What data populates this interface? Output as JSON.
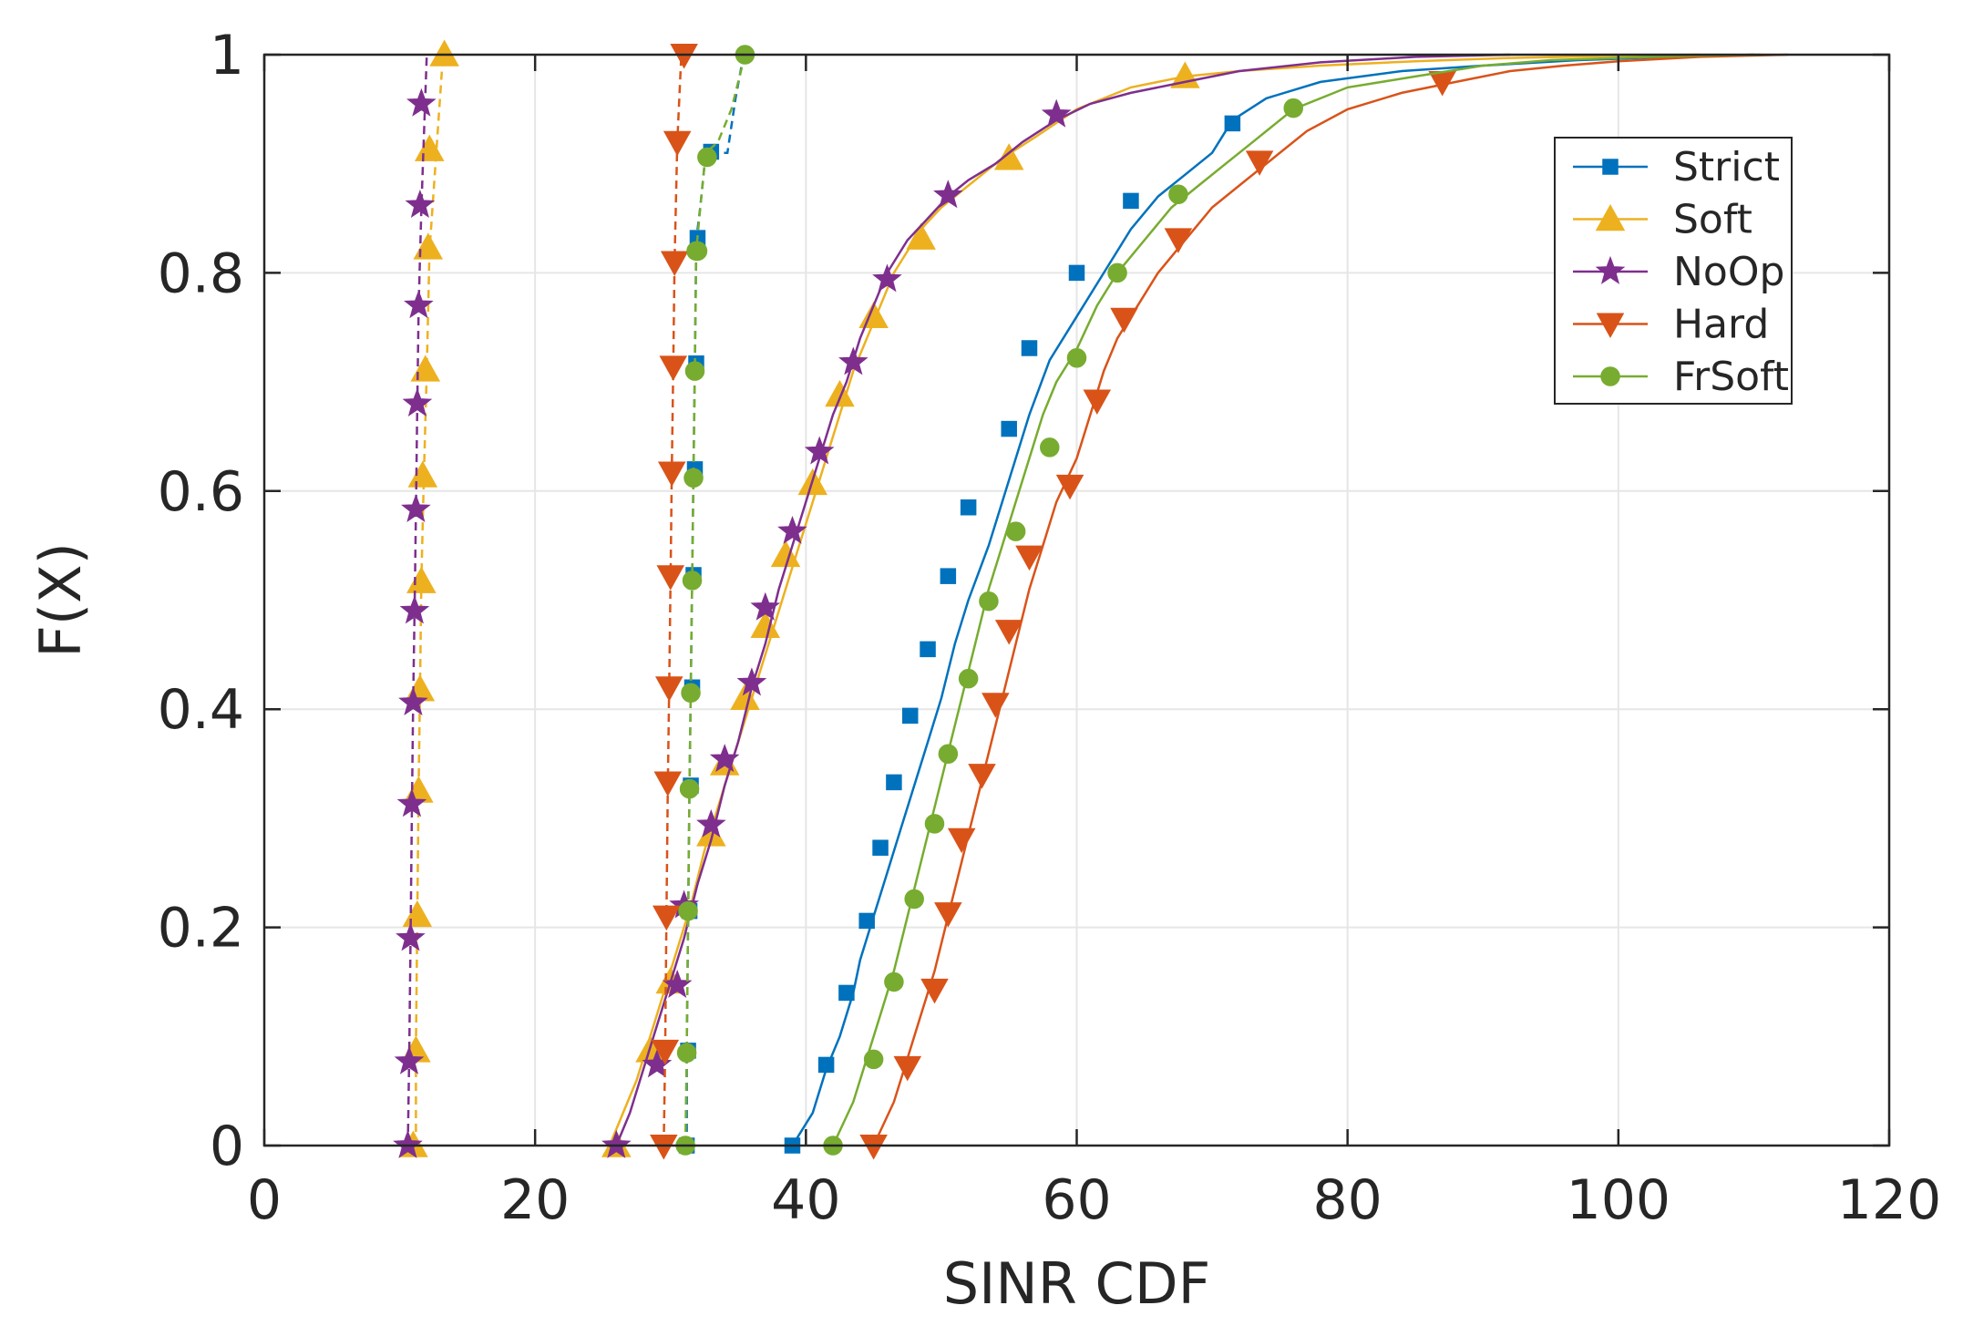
{
  "chart_data": {
    "type": "line",
    "title": "",
    "xlabel": "SINR CDF",
    "ylabel": "F(X)",
    "xlim": [
      0,
      120
    ],
    "ylim": [
      0,
      1
    ],
    "xticks": [
      0,
      20,
      40,
      60,
      80,
      100,
      120
    ],
    "yticks": [
      0,
      0.2,
      0.4,
      0.6,
      0.8,
      1
    ],
    "xtick_labels": [
      "0",
      "20",
      "40",
      "60",
      "80",
      "100",
      "120"
    ],
    "ytick_labels": [
      "0",
      "0.2",
      "0.4",
      "0.6",
      "0.8",
      "1"
    ],
    "grid": true,
    "legend_position": "top-right",
    "series": [
      {
        "name": "Strict",
        "color": "#0072BD",
        "marker": "square",
        "solid": {
          "x": [
            39.0,
            40.5,
            41.5,
            42.5,
            43.5,
            44.0,
            45.0,
            46.0,
            47.0,
            48.0,
            49.0,
            50.0,
            51.0,
            52.0,
            53.5,
            55.0,
            56.5,
            58.0,
            60.0,
            62.0,
            64.0,
            66.0,
            68.0,
            70.0,
            71.5,
            74.0,
            78.0,
            84.0,
            90.0,
            97.0,
            104.0,
            110.0
          ],
          "y": [
            0.0,
            0.03,
            0.07,
            0.1,
            0.14,
            0.17,
            0.21,
            0.25,
            0.29,
            0.33,
            0.37,
            0.41,
            0.46,
            0.5,
            0.55,
            0.61,
            0.67,
            0.72,
            0.76,
            0.8,
            0.84,
            0.87,
            0.89,
            0.91,
            0.94,
            0.96,
            0.975,
            0.985,
            0.99,
            0.995,
            0.998,
            1.0
          ]
        },
        "dashed": {
          "x": [
            31.2,
            31.2,
            31.3,
            31.4,
            31.5,
            31.6,
            31.7,
            31.8,
            31.9,
            32.2,
            32.6,
            33.5,
            34.2,
            34.8,
            35.4
          ],
          "y": [
            0.0,
            0.09,
            0.21,
            0.33,
            0.42,
            0.52,
            0.62,
            0.72,
            0.83,
            0.86,
            0.91,
            0.91,
            0.91,
            0.96,
            1.0
          ]
        },
        "solid_markers": {
          "x": [
            39.0,
            41.5,
            43.0,
            44.5,
            45.5,
            46.5,
            47.7,
            49.0,
            50.5,
            52.0,
            55.0,
            56.5,
            60.0,
            64.0,
            71.5
          ],
          "y": [
            0.0,
            0.074,
            0.14,
            0.206,
            0.273,
            0.333,
            0.394,
            0.455,
            0.522,
            0.585,
            0.657,
            0.731,
            0.8,
            0.866,
            0.937
          ]
        },
        "dashed_markers": {
          "x": [
            31.2,
            31.3,
            31.4,
            31.5,
            31.6,
            31.7,
            31.8,
            31.9,
            32.0,
            33.0
          ],
          "y": [
            0.0,
            0.087,
            0.215,
            0.33,
            0.42,
            0.523,
            0.62,
            0.717,
            0.832,
            0.911
          ]
        }
      },
      {
        "name": "Soft",
        "color": "#EDB120",
        "marker": "triangle-up",
        "solid": {
          "x": [
            25.5,
            26.5,
            27.5,
            28.5,
            29.5,
            30.5,
            31.5,
            32.5,
            33.5,
            34.5,
            35.5,
            36.5,
            37.5,
            38.5,
            39.5,
            40.5,
            41.5,
            42.5,
            43.5,
            44.5,
            45.5,
            46.5,
            47.5,
            48.5,
            50.0,
            52.0,
            54.5,
            57.0,
            60.0,
            64.0,
            68.0,
            72.0,
            78.0,
            85.0,
            92.0,
            100.0,
            106.0
          ],
          "y": [
            0.0,
            0.03,
            0.06,
            0.1,
            0.14,
            0.18,
            0.22,
            0.27,
            0.31,
            0.35,
            0.39,
            0.43,
            0.47,
            0.51,
            0.55,
            0.59,
            0.63,
            0.67,
            0.71,
            0.74,
            0.77,
            0.8,
            0.82,
            0.84,
            0.86,
            0.88,
            0.905,
            0.925,
            0.95,
            0.97,
            0.98,
            0.985,
            0.99,
            0.994,
            0.997,
            0.999,
            1.0
          ]
        },
        "dashed": {
          "x": [
            11.2,
            11.2,
            11.3,
            11.4,
            11.5,
            11.6,
            11.8,
            12.0,
            12.2,
            13.2
          ],
          "y": [
            0.0,
            0.09,
            0.21,
            0.33,
            0.42,
            0.52,
            0.62,
            0.71,
            0.82,
            1.0
          ]
        },
        "solid_markers": {
          "x": [
            26.0,
            28.5,
            30.0,
            33.0,
            34.0,
            35.5,
            37.0,
            38.5,
            40.5,
            42.5,
            45.0,
            48.5,
            55.0,
            68.0
          ],
          "y": [
            0.0,
            0.087,
            0.15,
            0.285,
            0.35,
            0.41,
            0.476,
            0.541,
            0.607,
            0.688,
            0.76,
            0.832,
            0.905,
            0.98
          ]
        },
        "dashed_markers": {
          "x": [
            11.0,
            11.2,
            11.3,
            11.4,
            11.5,
            11.6,
            11.7,
            11.9,
            12.1,
            12.2,
            13.3
          ],
          "y": [
            0.0,
            0.087,
            0.211,
            0.325,
            0.418,
            0.517,
            0.614,
            0.711,
            0.823,
            0.913,
            1.0
          ]
        }
      },
      {
        "name": "NoOp",
        "color": "#7E2F8E",
        "marker": "star",
        "solid": {
          "x": [
            26.0,
            27.0,
            28.0,
            29.0,
            30.0,
            31.0,
            32.0,
            33.0,
            34.0,
            35.0,
            36.0,
            37.0,
            38.0,
            39.0,
            40.0,
            41.0,
            42.0,
            43.0,
            44.0,
            45.0,
            46.0,
            47.5,
            49.0,
            50.5,
            52.0,
            54.0,
            56.0,
            58.5,
            61.0,
            64.0,
            68.0,
            72.0,
            78.0,
            85.0,
            92.0
          ],
          "y": [
            0.0,
            0.03,
            0.07,
            0.11,
            0.15,
            0.19,
            0.24,
            0.28,
            0.33,
            0.37,
            0.42,
            0.46,
            0.51,
            0.55,
            0.59,
            0.63,
            0.67,
            0.7,
            0.74,
            0.77,
            0.8,
            0.83,
            0.85,
            0.87,
            0.885,
            0.9,
            0.92,
            0.94,
            0.955,
            0.965,
            0.975,
            0.985,
            0.993,
            0.998,
            1.0
          ]
        },
        "dashed": {
          "x": [
            10.6,
            10.7,
            10.8,
            10.9,
            11.0,
            11.1,
            11.2,
            11.3,
            11.4,
            11.6,
            12.0
          ],
          "y": [
            0.0,
            0.08,
            0.19,
            0.31,
            0.41,
            0.49,
            0.58,
            0.68,
            0.77,
            0.86,
            1.0
          ]
        },
        "solid_markers": {
          "x": [
            26.0,
            29.0,
            30.5,
            31.0,
            33.0,
            34.0,
            36.0,
            37.0,
            39.0,
            41.0,
            43.5,
            46.0,
            50.5,
            58.5
          ],
          "y": [
            0.0,
            0.074,
            0.147,
            0.22,
            0.294,
            0.354,
            0.424,
            0.493,
            0.563,
            0.636,
            0.718,
            0.794,
            0.871,
            0.945
          ]
        },
        "dashed_markers": {
          "x": [
            10.6,
            10.7,
            10.8,
            10.9,
            11.0,
            11.1,
            11.2,
            11.3,
            11.4,
            11.5,
            11.6
          ],
          "y": [
            0.0,
            0.077,
            0.19,
            0.313,
            0.406,
            0.49,
            0.583,
            0.68,
            0.77,
            0.862,
            0.955
          ]
        }
      },
      {
        "name": "Hard",
        "color": "#D95319",
        "marker": "triangle-down",
        "solid": {
          "x": [
            45.0,
            46.5,
            47.5,
            48.5,
            49.5,
            50.5,
            51.5,
            52.5,
            53.5,
            54.5,
            55.5,
            56.5,
            57.5,
            58.5,
            60.0,
            61.0,
            62.0,
            63.0,
            64.5,
            66.0,
            68.0,
            70.0,
            72.0,
            74.0,
            77.0,
            80.0,
            84.0,
            88.0,
            92.0,
            96.0,
            100.0,
            106.0,
            112.5
          ],
          "y": [
            0.0,
            0.04,
            0.08,
            0.12,
            0.16,
            0.21,
            0.26,
            0.31,
            0.36,
            0.41,
            0.46,
            0.51,
            0.55,
            0.59,
            0.63,
            0.67,
            0.71,
            0.74,
            0.77,
            0.8,
            0.83,
            0.86,
            0.88,
            0.9,
            0.93,
            0.95,
            0.965,
            0.975,
            0.985,
            0.99,
            0.994,
            0.998,
            1.0
          ]
        },
        "dashed": {
          "x": [
            29.5,
            29.6,
            29.7,
            29.8,
            29.9,
            30.0,
            30.1,
            30.2,
            30.3,
            30.5,
            30.8
          ],
          "y": [
            0.0,
            0.08,
            0.21,
            0.33,
            0.42,
            0.52,
            0.62,
            0.71,
            0.81,
            0.92,
            1.0
          ]
        },
        "solid_markers": {
          "x": [
            45.0,
            47.5,
            49.5,
            50.5,
            51.5,
            53.0,
            54.0,
            55.0,
            56.5,
            59.5,
            61.5,
            63.5,
            67.5,
            73.5,
            87.0
          ],
          "y": [
            0.0,
            0.072,
            0.143,
            0.213,
            0.281,
            0.34,
            0.405,
            0.472,
            0.54,
            0.605,
            0.683,
            0.758,
            0.831,
            0.902,
            0.975
          ]
        },
        "dashed_markers": {
          "x": [
            29.5,
            29.6,
            29.7,
            29.8,
            29.9,
            30.0,
            30.1,
            30.2,
            30.3,
            30.5,
            31.0
          ],
          "y": [
            0.0,
            0.087,
            0.21,
            0.333,
            0.42,
            0.522,
            0.617,
            0.714,
            0.81,
            0.92,
            1.0
          ]
        }
      },
      {
        "name": "FrSoft",
        "color": "#77AC30",
        "marker": "circle",
        "solid": {
          "x": [
            42.0,
            43.5,
            44.5,
            45.5,
            46.5,
            47.5,
            48.5,
            49.5,
            50.5,
            51.5,
            52.5,
            53.5,
            54.5,
            55.5,
            56.5,
            57.5,
            58.5,
            60.0,
            61.5,
            63.0,
            65.0,
            67.0,
            69.0,
            71.0,
            73.0,
            76.0,
            80.0,
            85.0,
            90.0,
            95.0,
            100.0,
            105.0,
            110.5
          ],
          "y": [
            0.0,
            0.04,
            0.08,
            0.12,
            0.16,
            0.21,
            0.26,
            0.31,
            0.36,
            0.41,
            0.46,
            0.51,
            0.55,
            0.59,
            0.63,
            0.67,
            0.7,
            0.73,
            0.77,
            0.8,
            0.83,
            0.86,
            0.88,
            0.9,
            0.92,
            0.95,
            0.97,
            0.98,
            0.99,
            0.995,
            0.997,
            0.999,
            1.0
          ]
        },
        "dashed": {
          "x": [
            31.1,
            31.2,
            31.3,
            31.4,
            31.5,
            31.6,
            31.7,
            31.8,
            31.9,
            32.2,
            32.6,
            33.5,
            34.5,
            35.5
          ],
          "y": [
            0.0,
            0.09,
            0.21,
            0.33,
            0.42,
            0.52,
            0.62,
            0.71,
            0.82,
            0.86,
            0.91,
            0.92,
            0.95,
            1.0
          ]
        },
        "solid_markers": {
          "x": [
            42.0,
            45.0,
            46.5,
            48.0,
            49.5,
            50.5,
            52.0,
            53.5,
            55.5,
            58.0,
            60.0,
            63.0,
            67.5,
            76.0
          ],
          "y": [
            0.0,
            0.079,
            0.15,
            0.226,
            0.295,
            0.359,
            0.428,
            0.499,
            0.563,
            0.64,
            0.722,
            0.8,
            0.872,
            0.951
          ]
        },
        "dashed_markers": {
          "x": [
            31.1,
            31.2,
            31.3,
            31.4,
            31.5,
            31.6,
            31.7,
            31.8,
            31.9,
            32.0,
            32.7,
            35.5
          ],
          "y": [
            0.0,
            0.085,
            0.215,
            0.327,
            0.415,
            0.518,
            0.612,
            0.71,
            0.82,
            0.82,
            0.906,
            1.0
          ]
        }
      }
    ]
  }
}
